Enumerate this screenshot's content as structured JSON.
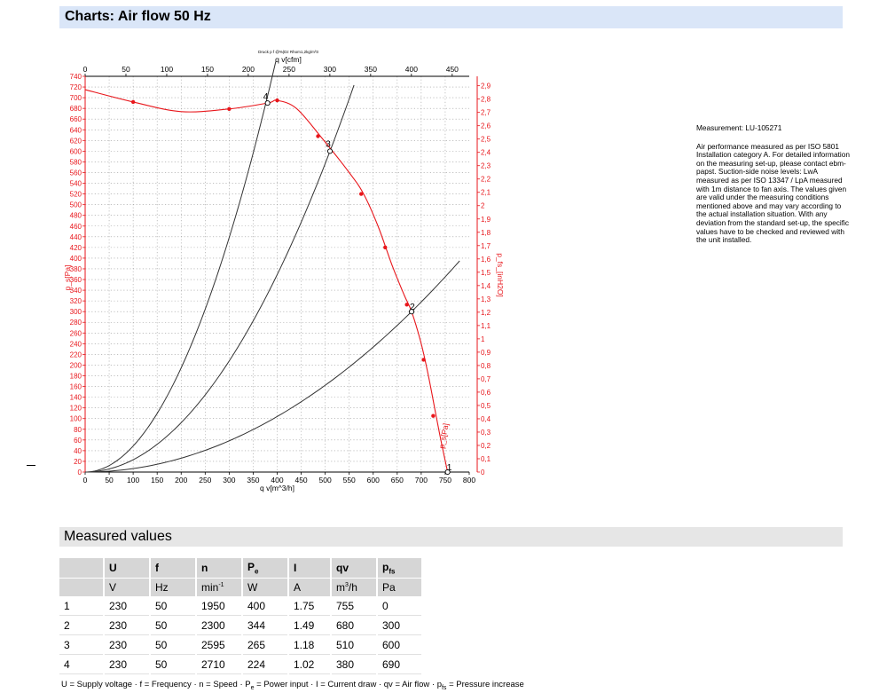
{
  "header": {
    "title": "Charts: Air flow 50 Hz"
  },
  "side_info": {
    "measurement": "Measurement: LU-105271",
    "description": "Air performance measured as per ISO 5801 Installation category A. For detailed information on the measuring set-up, please contact ebm-papst. Suction-side noise levels: LwA measured as per ISO 13347 / LpA measured with 1m distance to fan axis. The values given are valid under the measuring conditions mentioned above and may vary according to the actual installation situation. With any deviation from the standard set-up, the specific values have to be checked and reviewed with the unit installed."
  },
  "chart_data": {
    "type": "line",
    "tiny_caption": "Druck p f @%|Dz Rhom1,2kg/m³3",
    "xlabel_bottom": "q v[m^3/h]",
    "xlabel_top": "q v[cfm]",
    "ylabel_left": "p_s[Pa]",
    "ylabel_right": "p_fs_[inH2O]",
    "xlim": [
      0,
      800
    ],
    "ylim": [
      0,
      740
    ],
    "x_ticks": [
      "0",
      "50",
      "100",
      "150",
      "200",
      "250",
      "300",
      "350",
      "400",
      "450",
      "500",
      "550",
      "600",
      "650",
      "700",
      "750",
      "800"
    ],
    "x_top_ticks": [
      "0",
      "50",
      "100",
      "150",
      "200",
      "250",
      "300",
      "350",
      "400",
      "450"
    ],
    "y_ticks": [
      "0",
      "20",
      "40",
      "60",
      "80",
      "100",
      "120",
      "140",
      "160",
      "180",
      "200",
      "220",
      "240",
      "260",
      "280",
      "300",
      "320",
      "340",
      "360",
      "380",
      "400",
      "420",
      "440",
      "460",
      "480",
      "500",
      "520",
      "540",
      "560",
      "580",
      "600",
      "620",
      "640",
      "660",
      "680",
      "700",
      "720",
      "740"
    ],
    "y_right_ticks": [
      "0",
      "0,1",
      "0,2",
      "0,3",
      "0,4",
      "0,5",
      "0,6",
      "0,7",
      "0,8",
      "0,9",
      "1",
      "1,1",
      "1,2",
      "1,3",
      "1,4",
      "1,5",
      "1,6",
      "1,7",
      "1,8",
      "1,9",
      "2",
      "2,1",
      "2,2",
      "2,3",
      "2,4",
      "2,5",
      "2,6",
      "2,7",
      "2,8",
      "2,9"
    ],
    "grid": true,
    "series": [
      {
        "name": "",
        "color": "#e8161b",
        "curve_label": "p_s[Pa]",
        "points": [
          [
            0,
            715
          ],
          [
            100,
            692
          ],
          [
            200,
            674
          ],
          [
            300,
            679
          ],
          [
            380,
            690
          ],
          [
            400,
            695
          ],
          [
            440,
            680
          ],
          [
            490,
            628
          ],
          [
            550,
            560
          ],
          [
            580,
            520
          ],
          [
            610,
            460
          ],
          [
            640,
            385
          ],
          [
            665,
            330
          ],
          [
            680,
            300
          ],
          [
            700,
            240
          ],
          [
            715,
            180
          ],
          [
            730,
            110
          ],
          [
            742,
            55
          ],
          [
            755,
            0
          ]
        ],
        "markers": [
          [
            100,
            692
          ],
          [
            300,
            679
          ],
          [
            400,
            695
          ],
          [
            485,
            628
          ],
          [
            575,
            520
          ],
          [
            625,
            420
          ],
          [
            670,
            313
          ],
          [
            705,
            210
          ],
          [
            725,
            105
          ]
        ]
      }
    ],
    "system_curves": [
      {
        "name": "",
        "color": "#333333",
        "k": 0.00487,
        "x_end": 397
      },
      {
        "name": "",
        "color": "#333333",
        "k": 0.002307,
        "x_end": 560
      },
      {
        "name": "",
        "color": "#333333",
        "k": 0.000649,
        "x_end": 780
      }
    ],
    "operating_points": [
      {
        "label": "1",
        "x": 755,
        "y": 0
      },
      {
        "label": "2",
        "x": 680,
        "y": 300
      },
      {
        "label": "3",
        "x": 510,
        "y": 600
      },
      {
        "label": "4",
        "x": 380,
        "y": 690
      }
    ]
  },
  "measured_values": {
    "title": "Measured values",
    "headers": [
      "",
      "U",
      "f",
      "n",
      "P_e",
      "I",
      "qv",
      "p_fs"
    ],
    "header_main": [
      "U",
      "f",
      "n",
      "P",
      "I",
      "qv",
      "p"
    ],
    "header_sub": [
      "",
      "",
      "",
      "e",
      "",
      "",
      "fs"
    ],
    "units": [
      "V",
      "Hz",
      "min",
      "W",
      "A",
      "m",
      "Pa"
    ],
    "unit_sup": [
      "",
      "",
      "-1",
      "",
      "",
      "3",
      ""
    ],
    "unit_tail": [
      "",
      "",
      "",
      "",
      "",
      "/h",
      ""
    ],
    "rows": [
      [
        "1",
        "230",
        "50",
        "1950",
        "400",
        "1.75",
        "755",
        "0"
      ],
      [
        "2",
        "230",
        "50",
        "2300",
        "344",
        "1.49",
        "680",
        "300"
      ],
      [
        "3",
        "230",
        "50",
        "2595",
        "265",
        "1.18",
        "510",
        "600"
      ],
      [
        "4",
        "230",
        "50",
        "2710",
        "224",
        "1.02",
        "380",
        "690"
      ]
    ],
    "legend_text": "U = Supply voltage · f = Frequency · n = Speed · Pe = Power input · I = Current draw · qv = Air flow · pfs = Pressure increase"
  }
}
